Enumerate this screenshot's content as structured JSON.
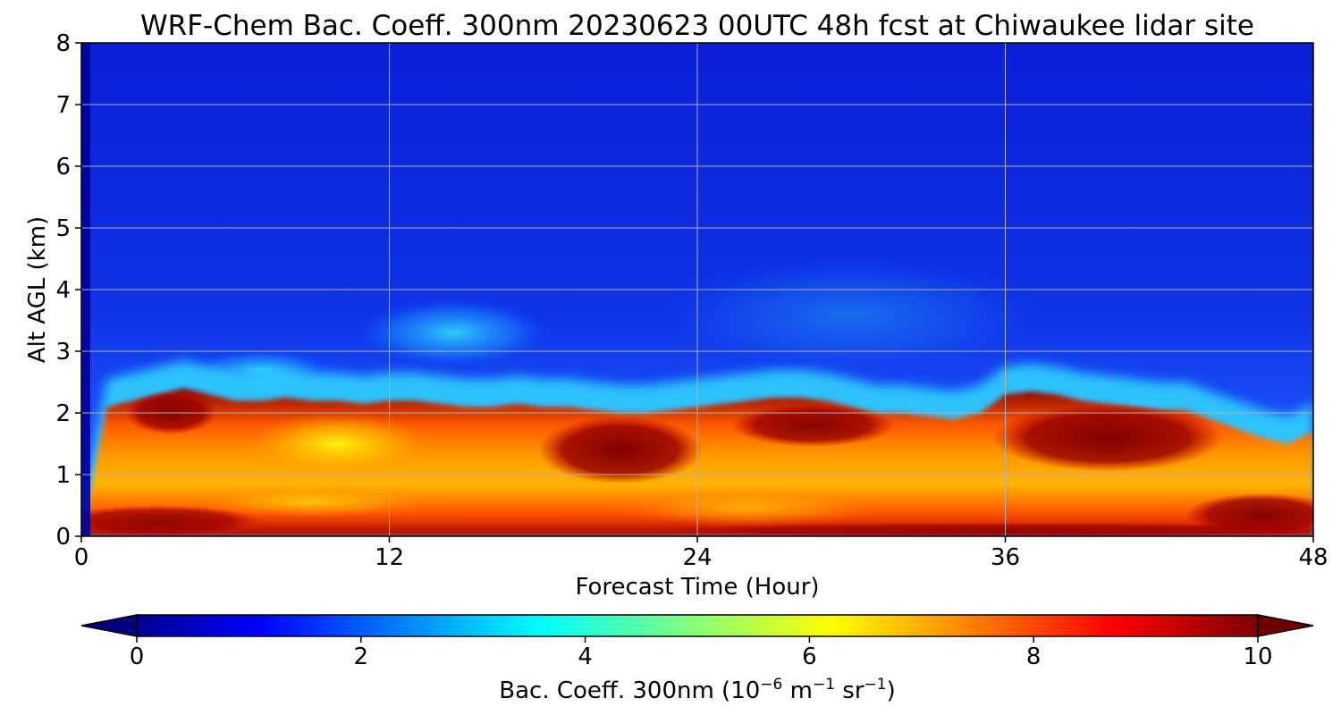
{
  "chart_data": {
    "type": "heatmap",
    "title": "WRF-Chem Bac. Coeff. 300nm  20230623 00UTC 48h fcst at Chiwaukee lidar site",
    "xlabel": "Forecast Time (Hour)",
    "ylabel": "Alt AGL (km)",
    "xlim": [
      0,
      48
    ],
    "ylim": [
      0,
      8
    ],
    "x_ticks": [
      "0",
      "12",
      "24",
      "36",
      "48"
    ],
    "y_ticks": [
      "0",
      "1",
      "2",
      "3",
      "4",
      "5",
      "6",
      "7",
      "8"
    ],
    "grid": true,
    "colormap": "jet",
    "colorbar": {
      "orientation": "horizontal",
      "placement": "bottom",
      "range": [
        0,
        10
      ],
      "extend": "both",
      "ticks": [
        "0",
        "2",
        "4",
        "6",
        "8",
        "10"
      ],
      "label_main": "Bac. Coeff. 300nm  (10",
      "label_exp1": "−6",
      "label_mid": " m",
      "label_exp2": "−1",
      "label_mid2": " sr",
      "label_exp3": "−1",
      "label_end": ")"
    },
    "hours": [
      0,
      1,
      2,
      3,
      4,
      5,
      6,
      7,
      8,
      9,
      10,
      11,
      12,
      13,
      14,
      15,
      16,
      17,
      18,
      19,
      20,
      21,
      22,
      23,
      24,
      25,
      26,
      27,
      28,
      29,
      30,
      31,
      32,
      33,
      34,
      35,
      36,
      37,
      38,
      39,
      40,
      41,
      42,
      43,
      44,
      45,
      46,
      47,
      48
    ],
    "top_of_aerosol_layer_km": [
      0,
      2.1,
      2.2,
      2.3,
      2.4,
      2.3,
      2.2,
      2.2,
      2.25,
      2.2,
      2.2,
      2.15,
      2.2,
      2.2,
      2.15,
      2.1,
      2.1,
      2.15,
      2.1,
      2.1,
      2.05,
      2.0,
      2.0,
      2.05,
      2.1,
      2.15,
      2.2,
      2.25,
      2.25,
      2.2,
      2.1,
      2.0,
      2.0,
      1.95,
      1.9,
      2.0,
      2.3,
      2.35,
      2.3,
      2.2,
      2.15,
      2.1,
      2.05,
      2.05,
      1.9,
      1.75,
      1.6,
      1.5,
      1.7
    ]
  }
}
